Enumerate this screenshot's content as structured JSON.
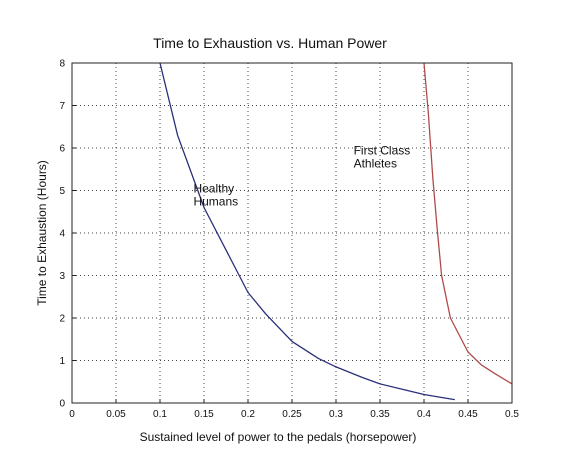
{
  "chart_data": {
    "type": "line",
    "title": "Time to Exhaustion vs. Human Power",
    "xlabel": "Sustained level of power to the pedals (horsepower)",
    "ylabel": "Time to Exhaustion (Hours)",
    "xlim": [
      0,
      0.5
    ],
    "ylim": [
      0,
      8
    ],
    "xticks": [
      "0",
      "0.05",
      "0.1",
      "0.15",
      "0.2",
      "0.25",
      "0.3",
      "0.35",
      "0.4",
      "0.45",
      "0.5"
    ],
    "yticks": [
      "0",
      "1",
      "2",
      "3",
      "4",
      "5",
      "6",
      "7",
      "8"
    ],
    "grid": true,
    "series": [
      {
        "color": "#2b2f7a",
        "x": [
          0.1,
          0.12,
          0.15,
          0.18,
          0.2,
          0.22,
          0.25,
          0.28,
          0.3,
          0.33,
          0.35,
          0.38,
          0.4,
          0.42,
          0.435
        ],
        "y": [
          8.0,
          6.3,
          4.6,
          3.4,
          2.6,
          2.1,
          1.45,
          1.05,
          0.85,
          0.6,
          0.45,
          0.3,
          0.2,
          0.13,
          0.08
        ]
      },
      {
        "color": "#b04a4a",
        "x": [
          0.4,
          0.405,
          0.41,
          0.415,
          0.42,
          0.43,
          0.44,
          0.45,
          0.465,
          0.48,
          0.5
        ],
        "y": [
          8.0,
          6.8,
          5.3,
          4.1,
          3.0,
          2.0,
          1.6,
          1.2,
          0.9,
          0.7,
          0.45
        ]
      }
    ],
    "annotations": [
      {
        "lines": [
          "Healthy",
          "Humans"
        ],
        "x": 0.138,
        "y": 4.95
      },
      {
        "lines": [
          "First Class",
          "Athletes"
        ],
        "x": 0.32,
        "y": 5.85
      }
    ]
  }
}
